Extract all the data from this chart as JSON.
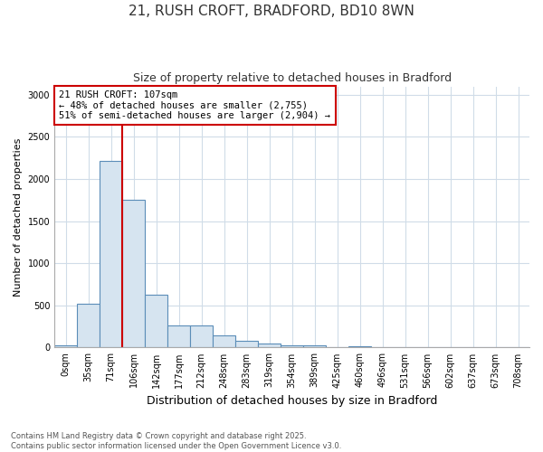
{
  "title_line1": "21, RUSH CROFT, BRADFORD, BD10 8WN",
  "title_line2": "Size of property relative to detached houses in Bradford",
  "xlabel": "Distribution of detached houses by size in Bradford",
  "ylabel": "Number of detached properties",
  "bin_labels": [
    "0sqm",
    "35sqm",
    "71sqm",
    "106sqm",
    "142sqm",
    "177sqm",
    "212sqm",
    "248sqm",
    "283sqm",
    "319sqm",
    "354sqm",
    "389sqm",
    "425sqm",
    "460sqm",
    "496sqm",
    "531sqm",
    "566sqm",
    "602sqm",
    "637sqm",
    "673sqm",
    "708sqm"
  ],
  "bar_values": [
    25,
    520,
    2220,
    1750,
    630,
    260,
    260,
    140,
    75,
    45,
    30,
    30,
    0,
    20,
    0,
    0,
    0,
    0,
    0,
    0,
    0
  ],
  "bar_color": "#d6e4f0",
  "bar_edgecolor": "#5b8db8",
  "vline_color": "#cc0000",
  "annotation_text": "21 RUSH CROFT: 107sqm\n← 48% of detached houses are smaller (2,755)\n51% of semi-detached houses are larger (2,904) →",
  "annotation_box_edgecolor": "#cc0000",
  "annotation_fontsize": 7.5,
  "ylim": [
    0,
    3100
  ],
  "yticks": [
    0,
    500,
    1000,
    1500,
    2000,
    2500,
    3000
  ],
  "bg_color": "#ffffff",
  "plot_bg_color": "#ffffff",
  "grid_color": "#d0dce8",
  "footer_text": "Contains HM Land Registry data © Crown copyright and database right 2025.\nContains public sector information licensed under the Open Government Licence v3.0.",
  "title_fontsize": 11,
  "subtitle_fontsize": 9,
  "ylabel_fontsize": 8,
  "xlabel_fontsize": 9,
  "tick_fontsize": 7
}
